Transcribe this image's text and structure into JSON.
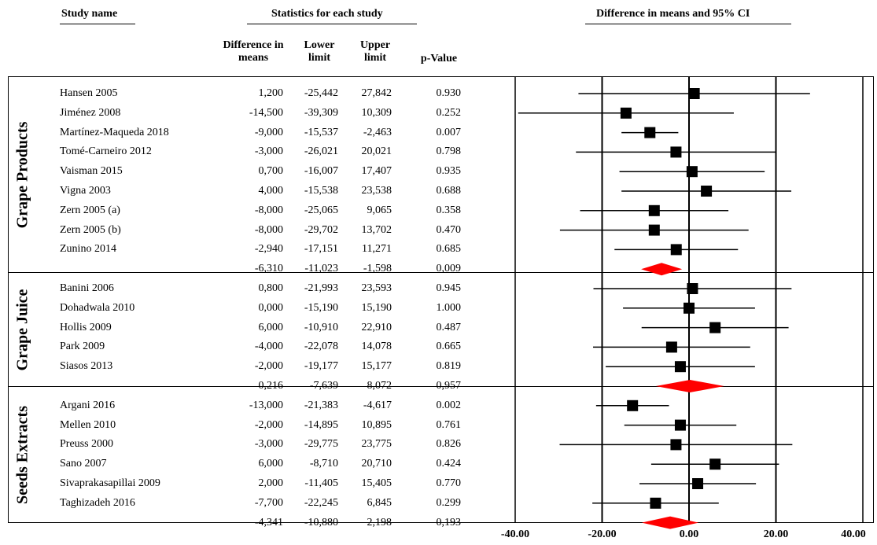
{
  "headers": {
    "study_name": "Study name",
    "statistics": "Statistics for each study",
    "difference_ci": "Difference in means and 95% CI",
    "col_diff": "Difference in means",
    "col_lower": "Lower limit",
    "col_upper": "Upper limit",
    "col_p": "p-Value"
  },
  "chart_data": {
    "type": "forest",
    "x_ticks": [
      "-40.00",
      "-20.00",
      "0.00",
      "20.00",
      "40.00"
    ],
    "xlim": [
      -40,
      40
    ],
    "marker_color": "#000000",
    "summary_color": "#ff0000",
    "groups": [
      {
        "label": "Grape Products",
        "studies": [
          {
            "name": "Hansen 2005",
            "diff": 1.2,
            "lower": -25.442,
            "upper": 27.842,
            "diff_text": "1,200",
            "lower_text": "-25,442",
            "upper_text": "27,842",
            "p_text": "0.930"
          },
          {
            "name": "Jiménez 2008",
            "diff": -14.5,
            "lower": -39.309,
            "upper": 10.309,
            "diff_text": "-14,500",
            "lower_text": "-39,309",
            "upper_text": "10,309",
            "p_text": "0.252"
          },
          {
            "name": "Martínez-Maqueda 2018",
            "diff": -9.0,
            "lower": -15.537,
            "upper": -2.463,
            "diff_text": "-9,000",
            "lower_text": "-15,537",
            "upper_text": "-2,463",
            "p_text": "0.007"
          },
          {
            "name": "Tomé-Carneiro 2012",
            "diff": -3.0,
            "lower": -26.021,
            "upper": 20.021,
            "diff_text": "-3,000",
            "lower_text": "-26,021",
            "upper_text": "20,021",
            "p_text": "0.798"
          },
          {
            "name": "Vaisman 2015",
            "diff": 0.7,
            "lower": -16.007,
            "upper": 17.407,
            "diff_text": "0,700",
            "lower_text": "-16,007",
            "upper_text": "17,407",
            "p_text": "0.935"
          },
          {
            "name": "Vigna 2003",
            "diff": 4.0,
            "lower": -15.538,
            "upper": 23.538,
            "diff_text": "4,000",
            "lower_text": "-15,538",
            "upper_text": "23,538",
            "p_text": "0.688"
          },
          {
            "name": "Zern 2005 (a)",
            "diff": -8.0,
            "lower": -25.065,
            "upper": 9.065,
            "diff_text": "-8,000",
            "lower_text": "-25,065",
            "upper_text": "9,065",
            "p_text": "0.358"
          },
          {
            "name": "Zern 2005 (b)",
            "diff": -8.0,
            "lower": -29.702,
            "upper": 13.702,
            "diff_text": "-8,000",
            "lower_text": "-29,702",
            "upper_text": "13,702",
            "p_text": "0.470"
          },
          {
            "name": "Zunino 2014",
            "diff": -2.94,
            "lower": -17.151,
            "upper": 11.271,
            "diff_text": "-2,940",
            "lower_text": "-17,151",
            "upper_text": "11,271",
            "p_text": "0.685"
          }
        ],
        "summary": {
          "diff": -6.31,
          "lower": -11.023,
          "upper": -1.598,
          "diff_text": "-6,310",
          "lower_text": "-11,023",
          "upper_text": "-1,598",
          "p_text": "0,009"
        }
      },
      {
        "label": "Grape Juice",
        "studies": [
          {
            "name": "Banini 2006",
            "diff": 0.8,
            "lower": -21.993,
            "upper": 23.593,
            "diff_text": "0,800",
            "lower_text": "-21,993",
            "upper_text": "23,593",
            "p_text": "0.945"
          },
          {
            "name": "Dohadwala 2010",
            "diff": 0.0,
            "lower": -15.19,
            "upper": 15.19,
            "diff_text": "0,000",
            "lower_text": "-15,190",
            "upper_text": "15,190",
            "p_text": "1.000"
          },
          {
            "name": "Hollis 2009",
            "diff": 6.0,
            "lower": -10.91,
            "upper": 22.91,
            "diff_text": "6,000",
            "lower_text": "-10,910",
            "upper_text": "22,910",
            "p_text": "0.487"
          },
          {
            "name": "Park 2009",
            "diff": -4.0,
            "lower": -22.078,
            "upper": 14.078,
            "diff_text": "-4,000",
            "lower_text": "-22,078",
            "upper_text": "14,078",
            "p_text": "0.665"
          },
          {
            "name": "Siasos 2013",
            "diff": -2.0,
            "lower": -19.177,
            "upper": 15.177,
            "diff_text": "-2,000",
            "lower_text": "-19,177",
            "upper_text": "15,177",
            "p_text": "0.819"
          }
        ],
        "summary": {
          "diff": 0.216,
          "lower": -7.639,
          "upper": 8.072,
          "diff_text": "0,216",
          "lower_text": "-7,639",
          "upper_text": "8,072",
          "p_text": "0,957"
        }
      },
      {
        "label": "Seeds Extracts",
        "studies": [
          {
            "name": "Argani 2016",
            "diff": -13.0,
            "lower": -21.383,
            "upper": -4.617,
            "diff_text": "-13,000",
            "lower_text": "-21,383",
            "upper_text": "-4,617",
            "p_text": "0.002"
          },
          {
            "name": "Mellen 2010",
            "diff": -2.0,
            "lower": -14.895,
            "upper": 10.895,
            "diff_text": "-2,000",
            "lower_text": "-14,895",
            "upper_text": "10,895",
            "p_text": "0.761"
          },
          {
            "name": "Preuss 2000",
            "diff": -3.0,
            "lower": -29.775,
            "upper": 23.775,
            "diff_text": "-3,000",
            "lower_text": "-29,775",
            "upper_text": "23,775",
            "p_text": "0.826"
          },
          {
            "name": "Sano 2007",
            "diff": 6.0,
            "lower": -8.71,
            "upper": 20.71,
            "diff_text": "6,000",
            "lower_text": "-8,710",
            "upper_text": "20,710",
            "p_text": "0.424"
          },
          {
            "name": "Sivaprakasapillai 2009",
            "diff": 2.0,
            "lower": -11.405,
            "upper": 15.405,
            "diff_text": "2,000",
            "lower_text": "-11,405",
            "upper_text": "15,405",
            "p_text": "0.770"
          },
          {
            "name": "Taghizadeh 2016",
            "diff": -7.7,
            "lower": -22.245,
            "upper": 6.845,
            "diff_text": "-7,700",
            "lower_text": "-22,245",
            "upper_text": "6,845",
            "p_text": "0.299"
          }
        ],
        "summary": {
          "diff": -4.341,
          "lower": -10.88,
          "upper": 2.198,
          "diff_text": "-4,341",
          "lower_text": "-10,880",
          "upper_text": "2,198",
          "p_text": "0,193"
        }
      }
    ]
  }
}
